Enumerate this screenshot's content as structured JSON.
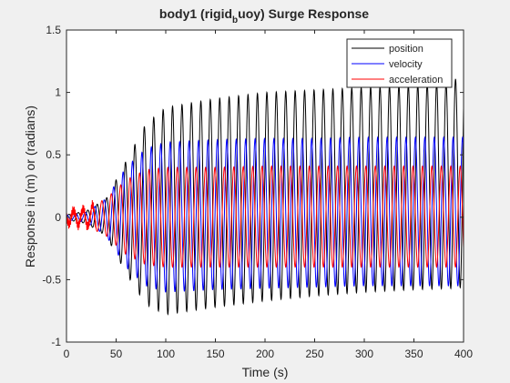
{
  "chart_data": {
    "type": "line",
    "title_main": "body1 (rigid",
    "title_sub": "b",
    "title_rest": "uoy) Surge Response",
    "xlabel": "Time (s)",
    "ylabel": "Response in (m) or (radians)",
    "xlim": [
      0,
      400
    ],
    "ylim": [
      -1,
      1.5
    ],
    "x_ticks": [
      0,
      50,
      100,
      150,
      200,
      250,
      300,
      350,
      400
    ],
    "y_ticks": [
      -1,
      -0.5,
      0,
      0.5,
      1,
      1.5
    ],
    "x_tick_labels": [
      "0",
      "50",
      "100",
      "150",
      "200",
      "250",
      "300",
      "350",
      "400"
    ],
    "y_tick_labels": [
      "-1",
      "-0.5",
      "0",
      "0.5",
      "1",
      "1.5"
    ],
    "grid": false,
    "legend_position": "top-right",
    "oscillation_period_s": 9.5,
    "series": [
      {
        "name": "position",
        "color": "#000000",
        "envelope_t": [
          0,
          20,
          40,
          60,
          80,
          100,
          150,
          200,
          250,
          300,
          350,
          390,
          400
        ],
        "envelope_max": [
          0.02,
          0.05,
          0.15,
          0.45,
          0.75,
          0.88,
          0.95,
          1.0,
          1.02,
          1.04,
          1.06,
          1.08,
          1.22
        ],
        "envelope_min": [
          -0.02,
          -0.05,
          -0.15,
          -0.45,
          -0.7,
          -0.78,
          -0.72,
          -0.67,
          -0.63,
          -0.6,
          -0.58,
          -0.57,
          -0.56
        ],
        "phase": 0
      },
      {
        "name": "velocity",
        "color": "#0000ff",
        "envelope_t": [
          0,
          20,
          40,
          60,
          80,
          100,
          150,
          200,
          250,
          300,
          350,
          400
        ],
        "envelope_max": [
          0.02,
          0.04,
          0.15,
          0.4,
          0.55,
          0.6,
          0.62,
          0.63,
          0.63,
          0.64,
          0.64,
          0.64
        ],
        "envelope_min": [
          -0.02,
          -0.04,
          -0.15,
          -0.4,
          -0.55,
          -0.6,
          -0.58,
          -0.57,
          -0.56,
          -0.55,
          -0.55,
          -0.55
        ],
        "phase": 1.5708
      },
      {
        "name": "acceleration",
        "color": "#ff0000",
        "envelope_t": [
          0,
          20,
          40,
          60,
          80,
          100,
          150,
          200,
          250,
          300,
          350,
          400
        ],
        "envelope_max": [
          0.05,
          0.07,
          0.15,
          0.3,
          0.38,
          0.4,
          0.4,
          0.41,
          0.41,
          0.41,
          0.41,
          0.41
        ],
        "envelope_min": [
          -0.05,
          -0.07,
          -0.15,
          -0.3,
          -0.38,
          -0.4,
          -0.4,
          -0.4,
          -0.4,
          -0.4,
          -0.4,
          -0.4
        ],
        "phase": 3.1416
      }
    ]
  }
}
